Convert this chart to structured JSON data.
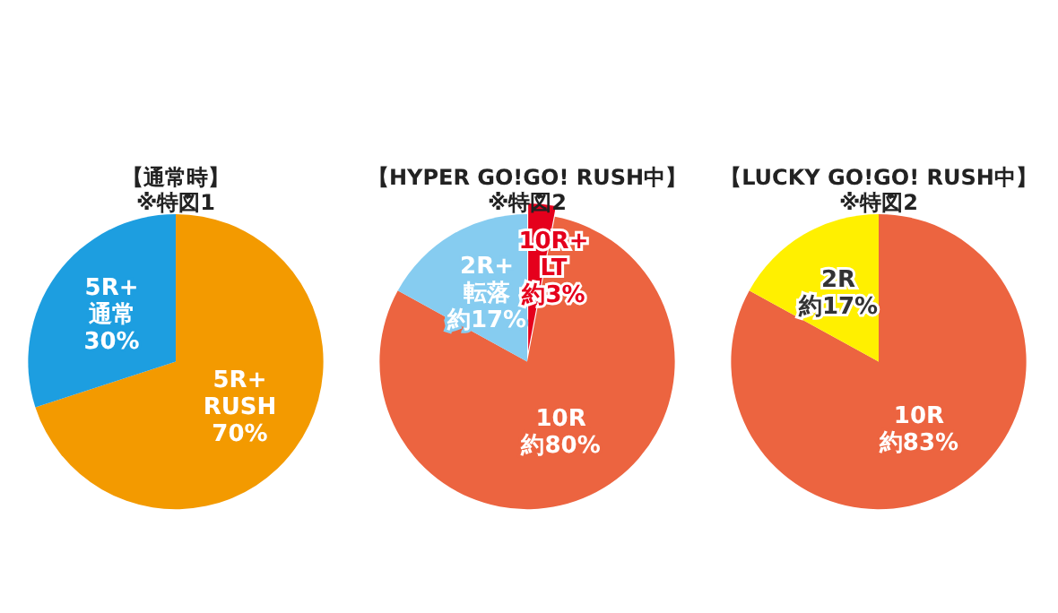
{
  "chart_data": [
    {
      "type": "pie",
      "title": "【通常時】",
      "subtitle": "※特図1",
      "categories": [
        "5R+\nRUSH",
        "5R+\n通常"
      ],
      "values": [
        70,
        30
      ],
      "value_labels": [
        "70%",
        "30%"
      ],
      "colors": [
        "#f39a00",
        "#1d9ee0"
      ]
    },
    {
      "type": "pie",
      "title": "【HYPER GO!GO! RUSH中】",
      "subtitle": "※特図2",
      "categories": [
        "10R+\nLT",
        "10R",
        "2R+\n転落"
      ],
      "values": [
        3,
        80,
        17
      ],
      "value_labels": [
        "約3%",
        "約80%",
        "約17%"
      ],
      "colors": [
        "#e5001c",
        "#ec6440",
        "#86ccf0"
      ]
    },
    {
      "type": "pie",
      "title": "【LUCKY GO!GO! RUSH中】",
      "subtitle": "※特図2",
      "categories": [
        "10R",
        "2R"
      ],
      "values": [
        83,
        17
      ],
      "value_labels": [
        "約83%",
        "約17%"
      ],
      "colors": [
        "#ec6440",
        "#fff000"
      ]
    }
  ]
}
